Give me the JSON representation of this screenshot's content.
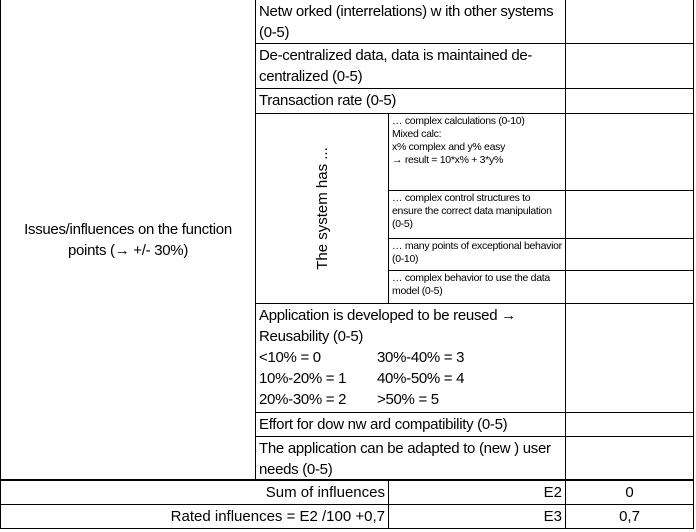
{
  "left_label": "Issues/influences on the function points (→ +/- 30%)",
  "rows": [
    {
      "label": "Netw orked (interrelations) w ith other systems (0-5)",
      "value": ""
    },
    {
      "label": "De-centralized data, data is maintained de-centralized (0-5)",
      "value": ""
    },
    {
      "label": "Transaction rate (0-5)",
      "value": ""
    }
  ],
  "system_group": {
    "label": "The system has ...",
    "items": [
      {
        "lines": [
          "… complex calculations (0-10)",
          "Mixed calc:",
          "x% complex and y% easy",
          "→ result = 10*x% + 3*y%"
        ],
        "value": ""
      },
      {
        "lines": [
          "… complex control structures to ensure the correct data manipulation (0-5)"
        ],
        "value": ""
      },
      {
        "lines": [
          "… many points of exceptional behavior (0-10)"
        ],
        "value": ""
      },
      {
        "lines": [
          "… complex behavior to use the data model (0-5)"
        ],
        "value": ""
      }
    ]
  },
  "reuse": {
    "lines": [
      "Application is developed to be reused →",
      "Reusability (0-5)"
    ],
    "scale": [
      [
        "<10% = 0",
        "30%-40% = 3"
      ],
      [
        "10%-20% = 1",
        "40%-50% = 4"
      ],
      [
        "20%-30% = 2",
        ">50% = 5"
      ]
    ],
    "value": ""
  },
  "rows2": [
    {
      "label": "Effort for dow nw ard compatibility (0-5)",
      "value": ""
    },
    {
      "label": "The application can be adapted to (new ) user needs (0-5)",
      "value": ""
    }
  ],
  "summary": [
    {
      "label": "Sum of influences",
      "cell": "E2",
      "value": "0"
    },
    {
      "label": "Rated influences = E2 /100 +0,7",
      "cell": "E3",
      "value": "0,7"
    }
  ]
}
